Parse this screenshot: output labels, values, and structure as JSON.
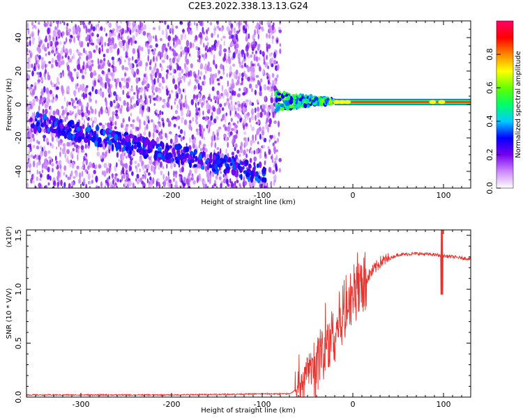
{
  "title": "C2E3.2022.338.13.13.G24",
  "chart_data": [
    {
      "type": "heatmap",
      "xlabel": "Height of straight line (km)",
      "ylabel": "Frequency (Hz)",
      "xlim": [
        -360,
        130
      ],
      "ylim": [
        -50,
        50
      ],
      "x_ticks": [
        -300,
        -200,
        -100,
        0,
        100
      ],
      "y_ticks": [
        -40,
        -20,
        0,
        20,
        40
      ],
      "colorbar": {
        "label": "Normalized spectral amplitude",
        "range": [
          0,
          1
        ],
        "ticks": [
          "0.0",
          "0.2",
          "0.4",
          "0.6",
          "0.8"
        ],
        "colors": [
          "#ffffff",
          "#cc88ff",
          "#7700ee",
          "#0000ff",
          "#00ccff",
          "#00ff66",
          "#66ff00",
          "#ffff00",
          "#ff8800",
          "#ff0000",
          "#ff0066"
        ]
      },
      "regions": [
        {
          "name": "noise",
          "x": [
            -360,
            -80
          ],
          "y": [
            -50,
            50
          ],
          "amplitude": 0.15
        },
        {
          "name": "drifting trace",
          "x": [
            -355,
            -95
          ],
          "y_start": -10,
          "y_end": -42,
          "amplitude": 0.3
        },
        {
          "name": "signal onset",
          "x": [
            -85,
            -20
          ],
          "y": [
            -5,
            8
          ],
          "amplitude": 0.45
        },
        {
          "name": "carrier",
          "x": [
            -20,
            130
          ],
          "y": 1.5,
          "amplitude": 0.85
        }
      ]
    },
    {
      "type": "line",
      "xlabel": "Height of straight line (km)",
      "ylabel": "SNR (10 * V/V)",
      "y_multiplier": "(x10⁴)",
      "xlim": [
        -360,
        130
      ],
      "ylim": [
        0,
        1.55
      ],
      "x_ticks": [
        -300,
        -200,
        -100,
        0,
        100
      ],
      "y_ticks": [
        "0.0",
        "0.5",
        "1.0",
        "1.5"
      ],
      "series_color": "#e8332d",
      "x": [
        -360,
        -300,
        -200,
        -100,
        -70,
        -60,
        -50,
        -40,
        -30,
        -20,
        -10,
        0,
        10,
        20,
        30,
        50,
        70,
        90,
        100,
        110,
        130
      ],
      "values": [
        0.02,
        0.02,
        0.02,
        0.03,
        0.03,
        0.08,
        0.25,
        0.35,
        0.45,
        0.6,
        0.8,
        0.95,
        1.05,
        1.15,
        1.25,
        1.32,
        1.33,
        1.32,
        1.31,
        1.3,
        1.28
      ]
    }
  ]
}
